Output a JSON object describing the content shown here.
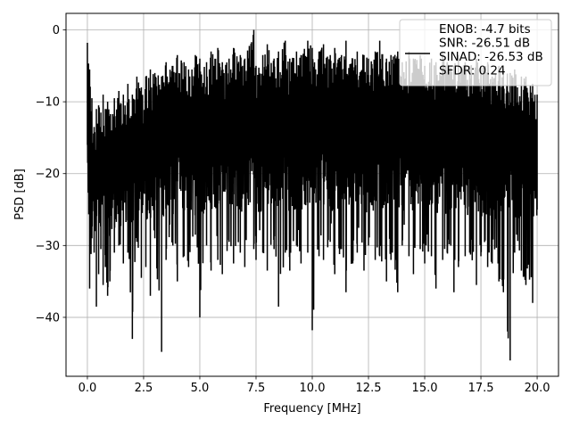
{
  "chart_data": {
    "type": "line",
    "title": "",
    "xlabel": "Frequency [MHz]",
    "ylabel": "PSD [dB]",
    "xlim": [
      -0.95,
      20.95
    ],
    "ylim": [
      -48.2,
      2.3
    ],
    "xticks": [
      0.0,
      2.5,
      5.0,
      7.5,
      10.0,
      12.5,
      15.0,
      17.5,
      20.0
    ],
    "xtick_labels": [
      "0.0",
      "2.5",
      "5.0",
      "7.5",
      "10.0",
      "12.5",
      "15.0",
      "17.5",
      "20.0"
    ],
    "yticks": [
      0,
      -10,
      -20,
      -30,
      -40
    ],
    "ytick_labels": [
      "0",
      "−10",
      "−20",
      "−30",
      "−40"
    ],
    "grid": true,
    "legend_position": "top-right",
    "series": [
      {
        "name": "ENOB: -4.7 bits\nSNR: -26.51 dB\nSINAD: -26.53 dB\nSFDR: 0.24",
        "color": "#000000",
        "x": [
          0,
          0.1,
          0.2,
          0.3,
          0.4,
          0.5,
          0.6,
          0.7,
          0.8,
          0.9,
          1.0,
          1.2,
          1.4,
          1.6,
          1.8,
          2.0,
          2.2,
          2.4,
          2.6,
          2.8,
          3.0,
          3.3,
          3.5,
          3.8,
          4.0,
          4.3,
          4.5,
          4.8,
          5.0,
          5.3,
          5.5,
          5.8,
          6.0,
          6.3,
          6.5,
          6.8,
          7.0,
          7.4,
          7.5,
          7.8,
          8.0,
          8.3,
          8.5,
          8.8,
          9.0,
          9.3,
          9.5,
          9.8,
          10.0,
          10.3,
          10.5,
          10.8,
          11.0,
          11.3,
          11.5,
          11.8,
          12.0,
          12.3,
          12.5,
          12.8,
          13.0,
          13.3,
          13.5,
          13.8,
          14.0,
          14.3,
          14.5,
          14.8,
          15.0,
          15.3,
          15.5,
          15.8,
          16.0,
          16.3,
          16.5,
          16.8,
          17.0,
          17.3,
          17.5,
          17.8,
          18.0,
          18.3,
          18.5,
          18.8,
          19.0,
          19.3,
          19.5,
          19.8,
          20.0
        ],
        "y_upper": [
          -1.8,
          -5.5,
          -9.5,
          -13.5,
          -11.0,
          -10.5,
          -11.5,
          -9.0,
          -11.0,
          -10.0,
          -12.0,
          -9.5,
          -8.5,
          -9.0,
          -7.5,
          -9.0,
          -6.5,
          -8.0,
          -6.5,
          -5.5,
          -6.0,
          -6.5,
          -4.5,
          -5.0,
          -3.5,
          -4.5,
          -5.5,
          -3.5,
          -4.0,
          -4.5,
          -3.0,
          -2.5,
          -4.5,
          -4.0,
          -2.5,
          -3.5,
          -4.0,
          0.0,
          -5.0,
          -3.5,
          -2.0,
          -4.0,
          -3.0,
          -1.5,
          -4.0,
          -3.0,
          -3.5,
          -1.5,
          -2.5,
          -3.0,
          -2.0,
          -3.5,
          -2.5,
          -3.5,
          -1.5,
          -4.0,
          -3.0,
          -3.5,
          -4.0,
          -3.0,
          -1.5,
          -4.0,
          -3.5,
          -3.0,
          -4.5,
          -3.0,
          -4.0,
          -3.5,
          -5.0,
          -4.0,
          -4.5,
          -3.0,
          -4.5,
          -5.0,
          -3.5,
          -4.5,
          -5.0,
          -4.0,
          -5.0,
          -4.5,
          -6.5,
          -5.0,
          -5.5,
          -6.0,
          -5.5,
          -6.5,
          -6.5,
          -7.5,
          -9.0
        ],
        "y_lower": [
          -16.0,
          -36.0,
          -29.0,
          -31.0,
          -38.5,
          -34.0,
          -30.5,
          -35.5,
          -33.0,
          -37.0,
          -35.0,
          -31.0,
          -30.0,
          -32.5,
          -31.0,
          -43.0,
          -29.5,
          -34.5,
          -33.0,
          -37.0,
          -29.0,
          -44.8,
          -32.0,
          -30.0,
          -35.0,
          -31.5,
          -33.0,
          -28.5,
          -40.0,
          -30.0,
          -33.5,
          -32.0,
          -34.0,
          -29.5,
          -32.5,
          -31.0,
          -33.0,
          -30.5,
          -32.0,
          -31.0,
          -33.5,
          -30.5,
          -38.5,
          -31.0,
          -33.5,
          -30.0,
          -32.5,
          -31.0,
          -41.8,
          -31.5,
          -32.0,
          -29.5,
          -34.0,
          -30.5,
          -36.5,
          -32.5,
          -31.0,
          -33.5,
          -30.0,
          -32.0,
          -31.5,
          -35.0,
          -32.0,
          -36.5,
          -30.0,
          -31.5,
          -34.0,
          -30.5,
          -32.5,
          -31.5,
          -36.0,
          -32.0,
          -31.0,
          -36.5,
          -33.0,
          -31.5,
          -31.0,
          -35.5,
          -31.5,
          -33.0,
          -32.5,
          -35.0,
          -36.5,
          -46.0,
          -31.0,
          -33.5,
          -35.5,
          -38.0,
          -25.0
        ]
      }
    ]
  }
}
